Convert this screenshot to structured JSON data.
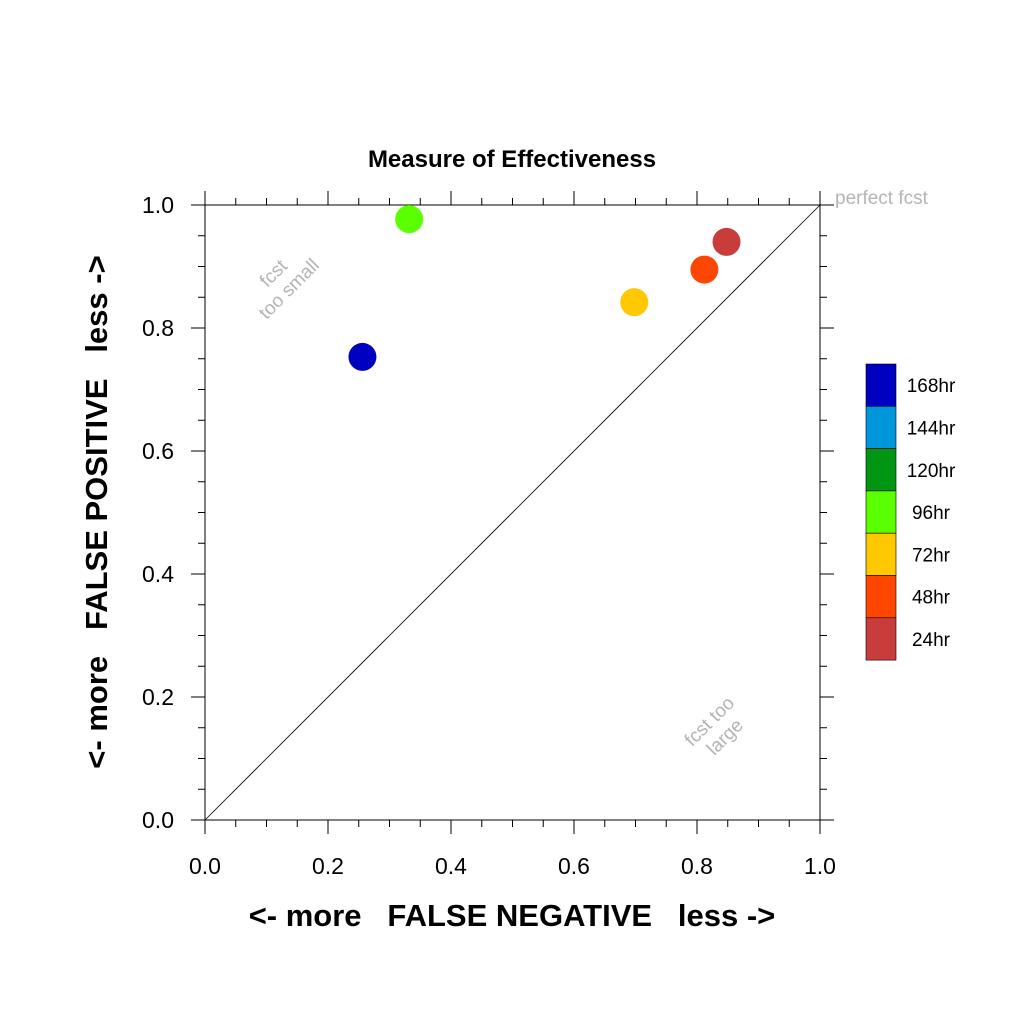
{
  "chart_data": {
    "type": "scatter",
    "title": "Measure of Effectiveness",
    "xlabel": "<- more   FALSE NEGATIVE   less ->",
    "ylabel": "<- more   FALSE POSITIVE   less ->",
    "xlim": [
      0.0,
      1.0
    ],
    "ylim": [
      0.0,
      1.0
    ],
    "x_ticks": [
      "0.0",
      "0.2",
      "0.4",
      "0.6",
      "0.8",
      "1.0"
    ],
    "y_ticks": [
      "0.0",
      "0.2",
      "0.4",
      "0.6",
      "0.8",
      "1.0"
    ],
    "grid": false,
    "diagonal_line": true,
    "annotations": {
      "perfect": "perfect fcst",
      "too_small": [
        "fcst",
        "too small"
      ],
      "too_large": [
        "fcst too",
        "large"
      ]
    },
    "legend_position": "right",
    "legend": [
      {
        "label": "168hr",
        "color": "#0000c0"
      },
      {
        "label": "144hr",
        "color": "#0096dc"
      },
      {
        "label": "120hr",
        "color": "#009614"
      },
      {
        "label": "96hr",
        "color": "#5aff00"
      },
      {
        "label": "72hr",
        "color": "#ffc800"
      },
      {
        "label": "48hr",
        "color": "#ff4600"
      },
      {
        "label": "24hr",
        "color": "#c83c3c"
      }
    ],
    "points": [
      {
        "label": "168hr",
        "x": 0.256,
        "y": 0.753,
        "color": "#0000c0"
      },
      {
        "label": "96hr",
        "x": 0.332,
        "y": 0.977,
        "color": "#5aff00"
      },
      {
        "label": "72hr",
        "x": 0.698,
        "y": 0.842,
        "color": "#ffc800"
      },
      {
        "label": "48hr",
        "x": 0.812,
        "y": 0.895,
        "color": "#ff4600"
      },
      {
        "label": "24hr",
        "x": 0.848,
        "y": 0.94,
        "color": "#c83c3c"
      }
    ]
  }
}
